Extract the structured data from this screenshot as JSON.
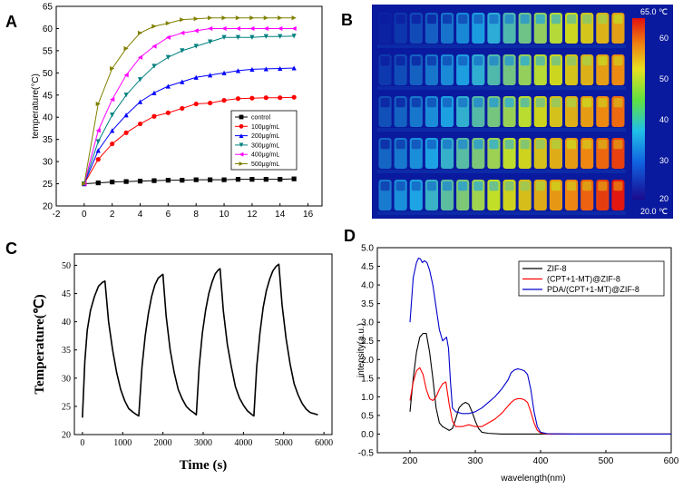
{
  "panels": {
    "A": {
      "letter": "A"
    },
    "B": {
      "letter": "B"
    },
    "C": {
      "letter": "C"
    },
    "D": {
      "letter": "D"
    }
  },
  "thermal_image": {
    "scale_max_label": "65.0 ℃",
    "scale_min_label": "20.0 ℃",
    "scale_ticks": [
      "60",
      "50",
      "40",
      "30",
      "20"
    ],
    "palette": {
      "cold": "#0a1a9e",
      "mid": "#1ea8e6",
      "warm": "#c8e020",
      "hot": "#f08010",
      "hottest": "#e01010"
    }
  },
  "chart_data": [
    {
      "id": "A",
      "type": "line",
      "title": "",
      "xlabel": "",
      "ylabel": "temperature(°C)",
      "xlim": [
        -2,
        17
      ],
      "ylim": [
        20,
        65
      ],
      "x_ticks": [
        "-2",
        "0",
        "2",
        "4",
        "6",
        "8",
        "10",
        "12",
        "14",
        "16"
      ],
      "y_ticks": [
        "20",
        "25",
        "30",
        "35",
        "40",
        "45",
        "50",
        "55",
        "60",
        "65"
      ],
      "x": [
        0,
        1,
        2,
        3,
        4,
        5,
        6,
        7,
        8,
        9,
        10,
        11,
        12,
        13,
        14,
        15
      ],
      "legend_position": "right",
      "series": [
        {
          "name": "control",
          "color": "#000000",
          "marker": "square",
          "values": [
            25,
            25.2,
            25.4,
            25.5,
            25.6,
            25.7,
            25.8,
            25.8,
            25.9,
            25.9,
            25.9,
            26.0,
            26.0,
            26.0,
            26.0,
            26.1
          ]
        },
        {
          "name": "100μg/mL",
          "color": "#ff0000",
          "marker": "circle",
          "values": [
            25,
            30.5,
            34,
            36.5,
            38.5,
            40.2,
            41,
            42,
            43,
            43.2,
            43.8,
            44.2,
            44.3,
            44.4,
            44.4,
            44.5
          ]
        },
        {
          "name": "200μg/mL",
          "color": "#0000ff",
          "marker": "triangle-up",
          "values": [
            25,
            32.5,
            37,
            40.5,
            43.5,
            45.5,
            47,
            48,
            49,
            49.5,
            50,
            50.5,
            50.8,
            50.9,
            51,
            51.1
          ]
        },
        {
          "name": "300μg/mL",
          "color": "#008080",
          "marker": "triangle-down",
          "values": [
            25,
            34.5,
            40.5,
            45,
            48.5,
            51.5,
            53.5,
            55,
            56,
            57,
            58,
            58,
            58,
            58.2,
            58.2,
            58.3
          ]
        },
        {
          "name": "400μg/mL",
          "color": "#ff00ff",
          "marker": "triangle-left",
          "values": [
            25,
            37,
            44,
            49.5,
            53.5,
            56,
            58,
            59,
            59.5,
            60,
            60,
            60,
            60,
            60,
            60,
            60
          ]
        },
        {
          "name": "500μg/mL",
          "color": "#808000",
          "marker": "triangle-right",
          "values": [
            25,
            43,
            51,
            55.5,
            59,
            60.5,
            61.2,
            62,
            62.2,
            62.4,
            62.4,
            62.4,
            62.4,
            62.4,
            62.4,
            62.4
          ]
        }
      ]
    },
    {
      "id": "C",
      "type": "line",
      "title": "",
      "xlabel": "Time (s)",
      "ylabel": "Temperature(℃)",
      "xlim": [
        -200,
        6200
      ],
      "ylim": [
        20,
        52
      ],
      "x_ticks": [
        "0",
        "1000",
        "2000",
        "3000",
        "4000",
        "5000",
        "6000"
      ],
      "y_ticks": [
        "20",
        "25",
        "30",
        "35",
        "40",
        "45",
        "50"
      ],
      "series": [
        {
          "name": "temperature",
          "color": "#000000",
          "x": [
            0,
            60,
            120,
            200,
            300,
            400,
            500,
            560,
            650,
            750,
            850,
            950,
            1050,
            1150,
            1250,
            1350,
            1400,
            1480,
            1560,
            1640,
            1720,
            1800,
            1880,
            1960,
            2000,
            2080,
            2180,
            2280,
            2380,
            2480,
            2580,
            2680,
            2780,
            2830,
            2900,
            2980,
            3060,
            3140,
            3220,
            3300,
            3380,
            3420,
            3500,
            3600,
            3700,
            3800,
            3900,
            4000,
            4100,
            4200,
            4260,
            4330,
            4410,
            4490,
            4570,
            4650,
            4730,
            4810,
            4880,
            4960,
            5060,
            5160,
            5260,
            5360,
            5460,
            5560,
            5660,
            5760,
            5850
          ],
          "values": [
            23,
            33,
            38.5,
            42,
            44.5,
            46.3,
            47,
            47.2,
            40,
            35,
            31,
            28,
            26,
            24.6,
            24,
            23.5,
            23.3,
            32,
            37.5,
            41.5,
            44.5,
            46.5,
            47.7,
            48.2,
            48.4,
            41,
            35,
            31,
            28,
            26.3,
            25,
            24.3,
            23.8,
            23.5,
            32,
            38,
            42,
            45,
            47,
            48.5,
            49.2,
            49.4,
            42,
            36,
            32,
            28.5,
            26.5,
            25.2,
            24.2,
            23.6,
            23.3,
            32,
            38,
            42.5,
            45.5,
            47.5,
            49,
            49.8,
            50.2,
            43,
            37,
            32.5,
            29,
            27,
            25.5,
            24.5,
            23.9,
            23.7,
            23.5
          ]
        }
      ]
    },
    {
      "id": "D",
      "type": "line",
      "title": "",
      "xlabel": "wavelength(nm)",
      "ylabel": "intensity(a.u.)",
      "xlim": [
        150,
        600
      ],
      "ylim": [
        -0.5,
        5.0
      ],
      "x_ticks": [
        "200",
        "300",
        "400",
        "500",
        "600"
      ],
      "y_ticks": [
        "-0.5",
        "0.0",
        "0.5",
        "1.0",
        "1.5",
        "2.0",
        "2.5",
        "3.0",
        "3.5",
        "4.0",
        "4.5",
        "5.0"
      ],
      "legend_position": "top-right",
      "series": [
        {
          "name": "ZIF-8",
          "color": "#000000",
          "x": [
            200,
            205,
            210,
            215,
            220,
            225,
            230,
            235,
            240,
            245,
            250,
            255,
            260,
            265,
            270,
            275,
            280,
            285,
            290,
            295,
            300,
            305,
            310,
            320,
            340,
            360,
            380,
            400,
            450,
            500,
            550,
            600
          ],
          "values": [
            0.6,
            1.5,
            2.2,
            2.6,
            2.7,
            2.7,
            2.2,
            1.5,
            0.7,
            0.3,
            0.2,
            0.15,
            0.1,
            0.15,
            0.4,
            0.7,
            0.8,
            0.85,
            0.8,
            0.6,
            0.35,
            0.15,
            0.05,
            0.02,
            0.0,
            0.0,
            0.0,
            0.0,
            0.0,
            0.0,
            0.0,
            0.0
          ]
        },
        {
          "name": "(CPT+1-MT)@ZIF-8",
          "color": "#ff0000",
          "x": [
            200,
            205,
            210,
            215,
            220,
            225,
            230,
            235,
            240,
            245,
            250,
            255,
            260,
            265,
            270,
            280,
            290,
            300,
            310,
            320,
            330,
            340,
            350,
            355,
            360,
            365,
            370,
            375,
            380,
            385,
            390,
            395,
            400,
            410,
            450,
            500,
            550,
            600
          ],
          "values": [
            0.9,
            1.4,
            1.7,
            1.78,
            1.6,
            1.2,
            0.95,
            0.9,
            1.0,
            1.2,
            1.35,
            1.4,
            0.8,
            0.35,
            0.2,
            0.2,
            0.25,
            0.2,
            0.2,
            0.3,
            0.4,
            0.55,
            0.75,
            0.85,
            0.92,
            0.95,
            0.95,
            0.92,
            0.85,
            0.6,
            0.3,
            0.1,
            0.03,
            0.0,
            0.0,
            0.0,
            0.0,
            0.0
          ]
        },
        {
          "name": "PDA/(CPT+1-MT)@ZIF-8",
          "color": "#0000cc",
          "x": [
            200,
            205,
            210,
            213,
            216,
            219,
            222,
            226,
            230,
            235,
            240,
            245,
            250,
            253,
            256,
            259,
            262,
            265,
            270,
            280,
            290,
            300,
            310,
            320,
            330,
            340,
            350,
            355,
            360,
            365,
            370,
            375,
            380,
            385,
            390,
            395,
            400,
            410,
            450,
            500,
            550,
            600
          ],
          "values": [
            3.0,
            4.2,
            4.6,
            4.72,
            4.7,
            4.6,
            4.65,
            4.6,
            4.4,
            4.0,
            3.4,
            2.8,
            2.5,
            2.55,
            2.6,
            2.3,
            1.4,
            0.7,
            0.6,
            0.55,
            0.55,
            0.6,
            0.7,
            0.85,
            1.0,
            1.2,
            1.45,
            1.65,
            1.72,
            1.75,
            1.73,
            1.7,
            1.6,
            1.2,
            0.6,
            0.2,
            0.05,
            0.01,
            0.0,
            0.0,
            0.0,
            0.0
          ]
        }
      ]
    }
  ]
}
